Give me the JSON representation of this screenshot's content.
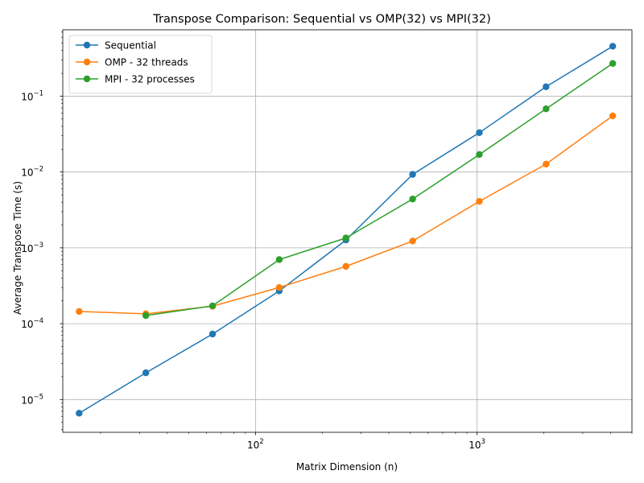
{
  "chart_data": {
    "type": "line",
    "title": "Transpose Comparison: Sequential vs OMP(32) vs MPI(32)",
    "xlabel": "Matrix Dimension (n)",
    "ylabel": "Average Transpose Time (s)",
    "xscale": "log",
    "yscale": "log",
    "xlim": [
      13.5,
      5000
    ],
    "ylim": [
      3.7e-06,
      0.75
    ],
    "grid": true,
    "legend_position": "top-left",
    "x_ticks": [
      {
        "value": 100,
        "base": "10",
        "exp": "2"
      },
      {
        "value": 1000,
        "base": "10",
        "exp": "3"
      }
    ],
    "y_ticks": [
      {
        "value": 1e-05,
        "base": "10",
        "exp": "−5"
      },
      {
        "value": 0.0001,
        "base": "10",
        "exp": "−4"
      },
      {
        "value": 0.001,
        "base": "10",
        "exp": "−3"
      },
      {
        "value": 0.01,
        "base": "10",
        "exp": "−2"
      },
      {
        "value": 0.1,
        "base": "10",
        "exp": "−1"
      }
    ],
    "series": [
      {
        "name": "Sequential",
        "color": "#1f77b4",
        "x": [
          16,
          32,
          64,
          128,
          256,
          512,
          1024,
          2048,
          4096
        ],
        "y": [
          6.6e-06,
          2.25e-05,
          7.3e-05,
          0.00027,
          0.00127,
          0.0093,
          0.033,
          0.133,
          0.455
        ]
      },
      {
        "name": "OMP - 32 threads",
        "color": "#ff7f0e",
        "x": [
          16,
          32,
          64,
          128,
          256,
          512,
          1024,
          2048,
          4096
        ],
        "y": [
          0.000145,
          0.000135,
          0.00017,
          0.0003,
          0.00057,
          0.00123,
          0.0041,
          0.0127,
          0.055
        ]
      },
      {
        "name": "MPI - 32 processes",
        "color": "#2ca02c",
        "x": [
          32,
          64,
          128,
          256,
          512,
          1024,
          2048,
          4096
        ],
        "y": [
          0.000128,
          0.000172,
          0.0007,
          0.00135,
          0.0044,
          0.017,
          0.068,
          0.27
        ]
      }
    ]
  }
}
